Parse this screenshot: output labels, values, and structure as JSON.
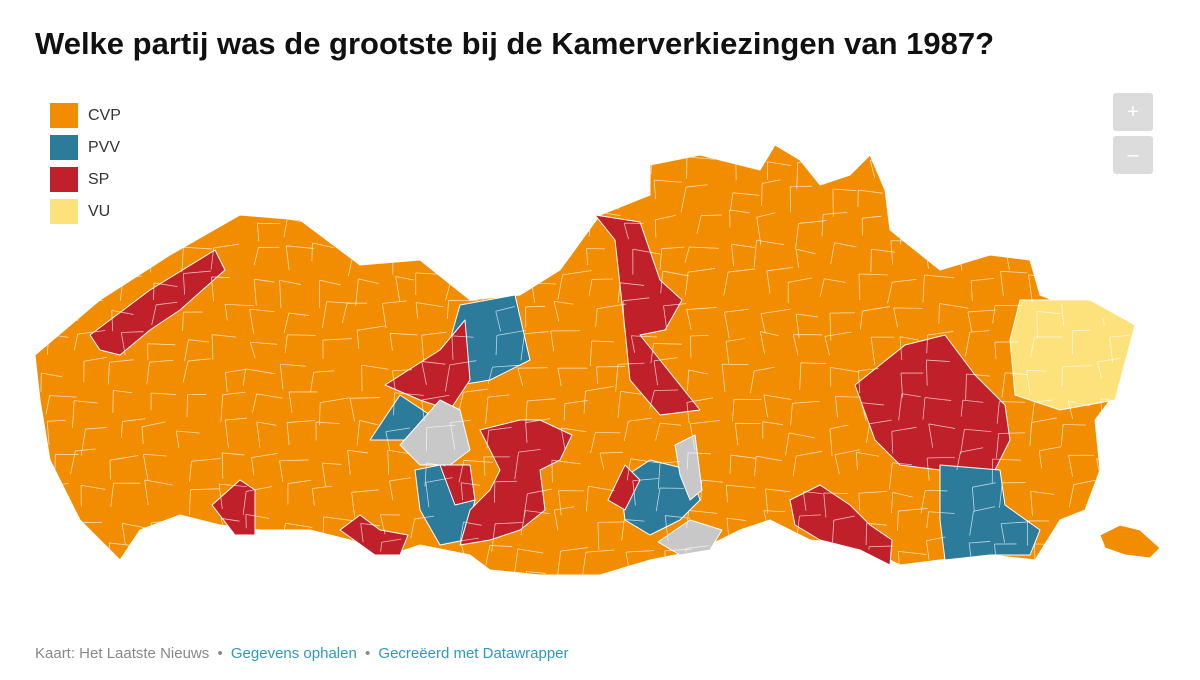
{
  "header": {
    "title": "Welke partij was de grootste bij de Kamerverkiezingen van 1987?"
  },
  "legend": {
    "items": [
      {
        "name": "CVP",
        "color": "#f28c00"
      },
      {
        "name": "PVV",
        "color": "#2d7b9a"
      },
      {
        "name": "SP",
        "color": "#c0202a"
      },
      {
        "name": "VU",
        "color": "#fde27c"
      }
    ]
  },
  "controls": {
    "zoom_in": "+",
    "zoom_out": "–"
  },
  "footer": {
    "source": "Kaart: Het Laatste Nieuws",
    "separator": "•",
    "link_data": "Gegevens ophalen",
    "link_credit": "Gecreëerd met Datawrapper"
  }
}
